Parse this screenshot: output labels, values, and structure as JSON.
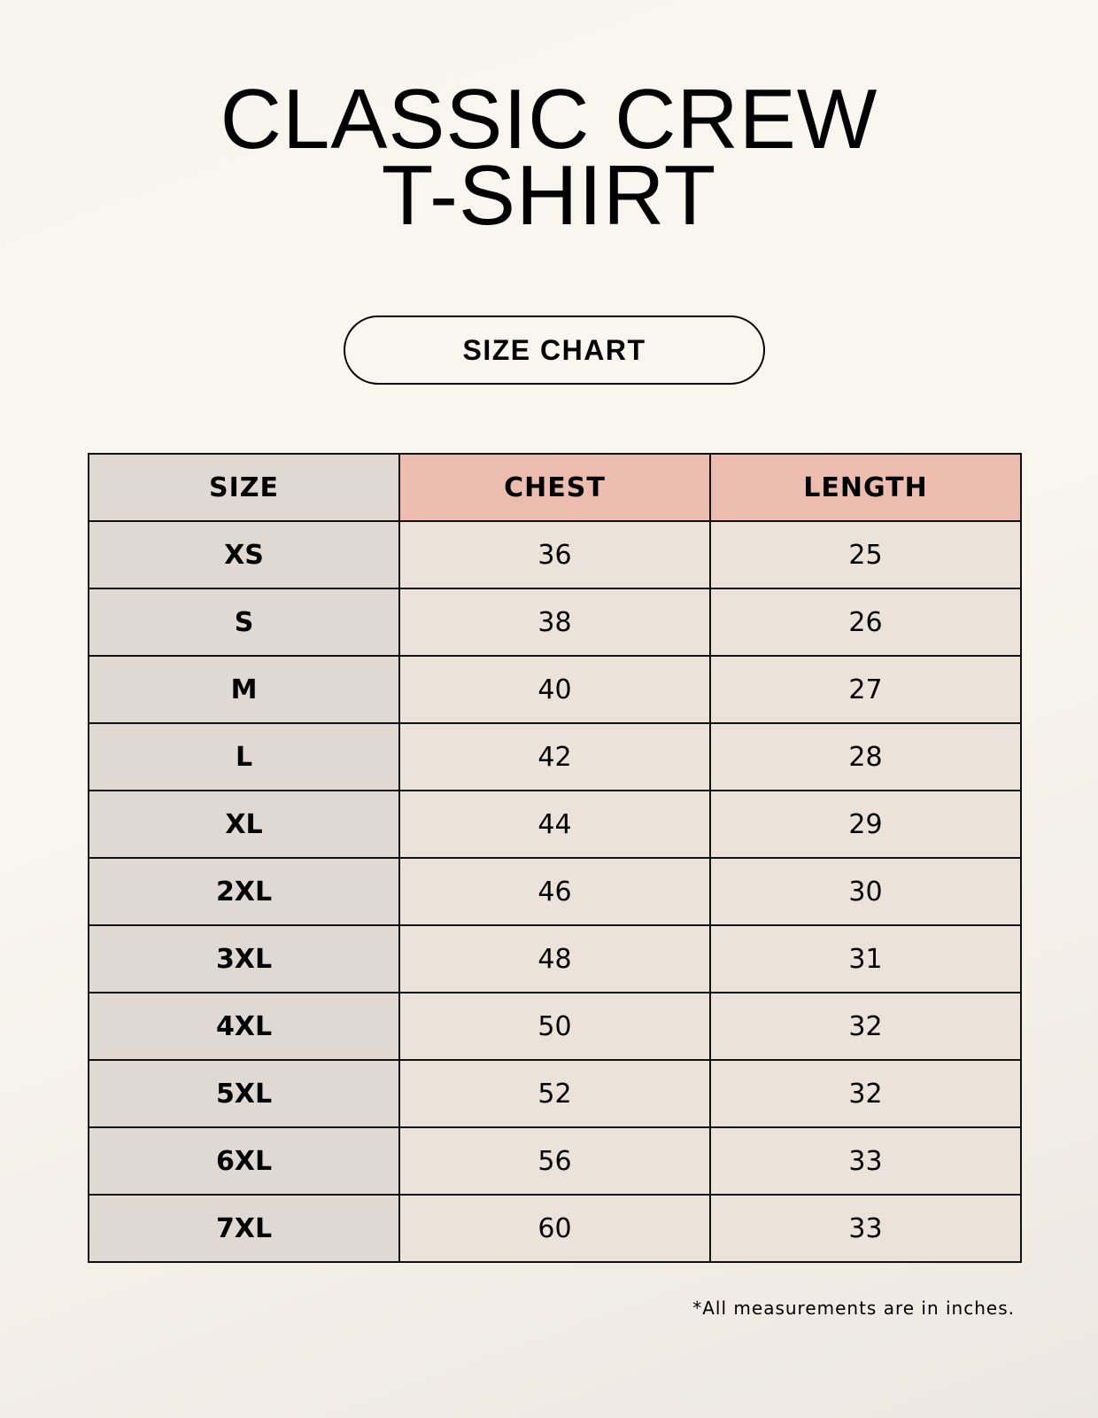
{
  "title": {
    "line1": "CLASSIC CREW",
    "line2": "T-SHIRT"
  },
  "label": "SIZE CHART",
  "table": {
    "headers": [
      "SIZE",
      "CHEST",
      "LENGTH"
    ],
    "header_colors": [
      "#e0d9d3",
      "#ecbcae",
      "#ecbcae"
    ],
    "rows": [
      [
        "XS",
        "36",
        "25"
      ],
      [
        "S",
        "38",
        "26"
      ],
      [
        "M",
        "40",
        "27"
      ],
      [
        "L",
        "42",
        "28"
      ],
      [
        "XL",
        "44",
        "29"
      ],
      [
        "2XL",
        "46",
        "30"
      ],
      [
        "3XL",
        "48",
        "31"
      ],
      [
        "4XL",
        "50",
        "32"
      ],
      [
        "5XL",
        "52",
        "32"
      ],
      [
        "6XL",
        "56",
        "33"
      ],
      [
        "7XL",
        "60",
        "33"
      ]
    ]
  },
  "footnote": "*All measurements are in inches."
}
